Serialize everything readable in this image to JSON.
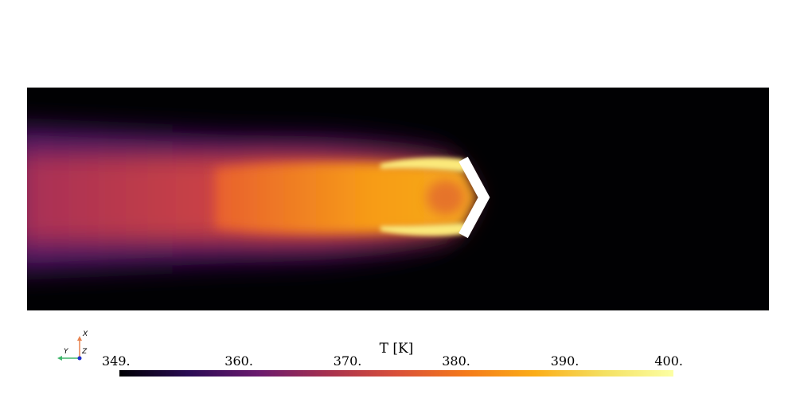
{
  "scalar_bar": {
    "title": "T [K]",
    "ticks": [
      "349.",
      "360.",
      "370.",
      "380.",
      "390.",
      "400."
    ],
    "range": [
      349,
      400
    ],
    "colormap": "inferno",
    "colors": [
      "#000004",
      "#2a0b54",
      "#6a1b6e",
      "#a6314f",
      "#d9503a",
      "#f47a1a",
      "#fbad18",
      "#f4e061",
      "#fcffa4"
    ]
  },
  "orientation_axes": {
    "x_label": "X",
    "y_label": "Y",
    "z_label": "Z",
    "x_color": "#e7834f",
    "y_color": "#3fb66b",
    "z_color": "#1c2fcc"
  },
  "field": {
    "background": "#010103",
    "obstacle_color": "#ffffff"
  }
}
